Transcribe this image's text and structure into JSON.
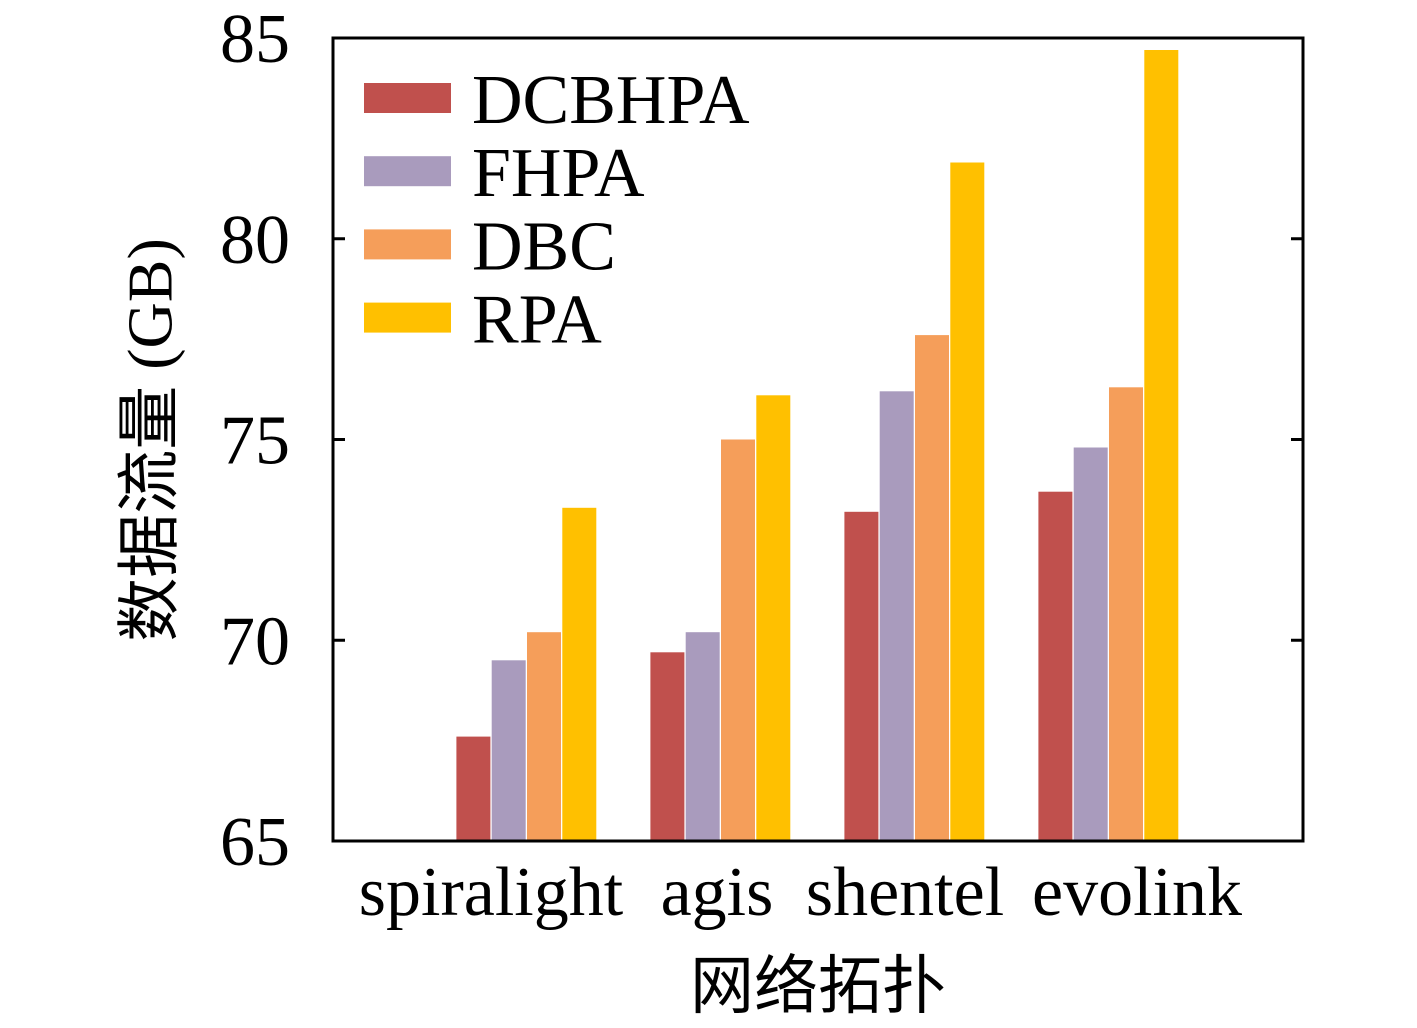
{
  "chart_data": {
    "type": "bar",
    "categories": [
      "spiralight",
      "agis",
      "shentel",
      "evolink"
    ],
    "series": [
      {
        "name": "DCBHPA",
        "values": [
          67.6,
          69.7,
          73.2,
          73.7
        ],
        "color": "#c0504d"
      },
      {
        "name": "FHPA",
        "values": [
          69.5,
          70.2,
          76.2,
          74.8
        ],
        "color": "#a99bbd"
      },
      {
        "name": "DBC",
        "values": [
          70.2,
          75.0,
          77.6,
          76.3
        ],
        "color": "#f59e5a"
      },
      {
        "name": "RPA",
        "values": [
          73.3,
          76.1,
          81.9,
          84.7
        ],
        "color": "#ffc000"
      }
    ],
    "xlabel": "网络拓扑",
    "ylabel": "数据流量 (GB)",
    "ylim": [
      65,
      85
    ],
    "yticks": [
      65,
      70,
      75,
      80,
      85
    ],
    "legend": "top-left",
    "grid": false
  }
}
